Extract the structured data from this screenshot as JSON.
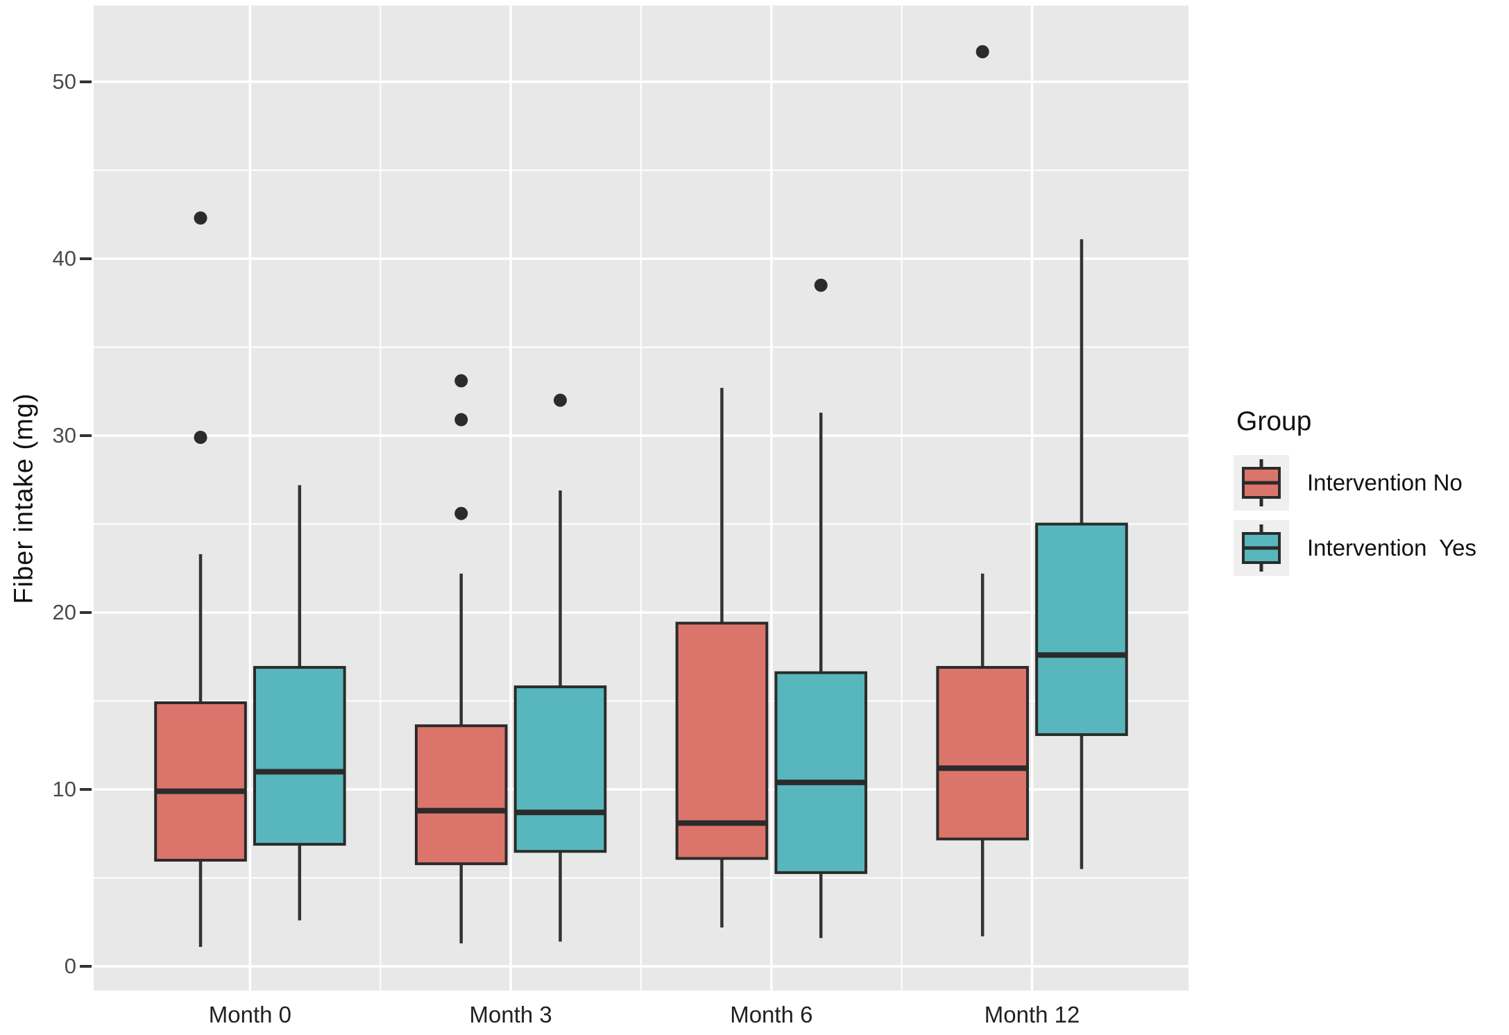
{
  "chart_data": {
    "type": "boxplot",
    "title": "",
    "xlabel": "",
    "ylabel": "Fiber intake (mg)",
    "categories": [
      "Month 0",
      "Month 3",
      "Month 6",
      "Month 12"
    ],
    "y_ticks": [
      0,
      10,
      20,
      30,
      40,
      50
    ],
    "y_ticks_display": [
      "50",
      "40",
      "30",
      "20",
      "10",
      "0"
    ],
    "ylim": [
      -1.37,
      54.31
    ],
    "gridlines": {
      "major": [
        0,
        10,
        20,
        30,
        40,
        50
      ],
      "minor": [
        5,
        15,
        25,
        35,
        45
      ],
      "grid_on": true
    },
    "legend": {
      "title": "Group",
      "position": "right",
      "items": [
        {
          "label": "Intervention No",
          "color": "#db756b"
        },
        {
          "label": "Intervention  Yes",
          "color": "#58b7bd"
        }
      ]
    },
    "series": [
      {
        "name": "Intervention No",
        "color": "#db756b",
        "boxes": [
          {
            "category": "Month 0",
            "min": 1.1,
            "q1": 6.0,
            "median": 9.9,
            "q3": 14.9,
            "max": 23.3,
            "outliers": [
              29.9,
              42.3
            ]
          },
          {
            "category": "Month 3",
            "min": 1.3,
            "q1": 5.8,
            "median": 8.8,
            "q3": 13.6,
            "max": 22.2,
            "outliers": [
              25.6,
              30.9,
              33.1
            ]
          },
          {
            "category": "Month 6",
            "min": 2.2,
            "q1": 6.1,
            "median": 8.1,
            "q3": 19.4,
            "max": 32.7,
            "outliers": []
          },
          {
            "category": "Month 12",
            "min": 1.7,
            "q1": 7.2,
            "median": 11.2,
            "q3": 16.9,
            "max": 22.2,
            "outliers": [
              51.7
            ]
          }
        ]
      },
      {
        "name": "Intervention Yes",
        "color": "#58b7bd",
        "boxes": [
          {
            "category": "Month 0",
            "min": 2.6,
            "q1": 6.9,
            "median": 11.0,
            "q3": 16.9,
            "max": 27.2,
            "outliers": []
          },
          {
            "category": "Month 3",
            "min": 1.4,
            "q1": 6.5,
            "median": 8.7,
            "q3": 15.8,
            "max": 26.9,
            "outliers": [
              32.0
            ]
          },
          {
            "category": "Month 6",
            "min": 1.6,
            "q1": 5.3,
            "median": 10.4,
            "q3": 16.6,
            "max": 31.3,
            "outliers": [
              38.5
            ]
          },
          {
            "category": "Month 12",
            "min": 5.5,
            "q1": 13.1,
            "median": 17.6,
            "q3": 25.0,
            "max": 41.1,
            "outliers": []
          }
        ]
      }
    ],
    "colors": {
      "plot_background": "#e9e8e8",
      "gridline": "#ffffff",
      "box_border": "#2b2b2b",
      "whisker": "#333333",
      "outlier": "#2b2b2b",
      "tick_mark": "#333333"
    }
  }
}
